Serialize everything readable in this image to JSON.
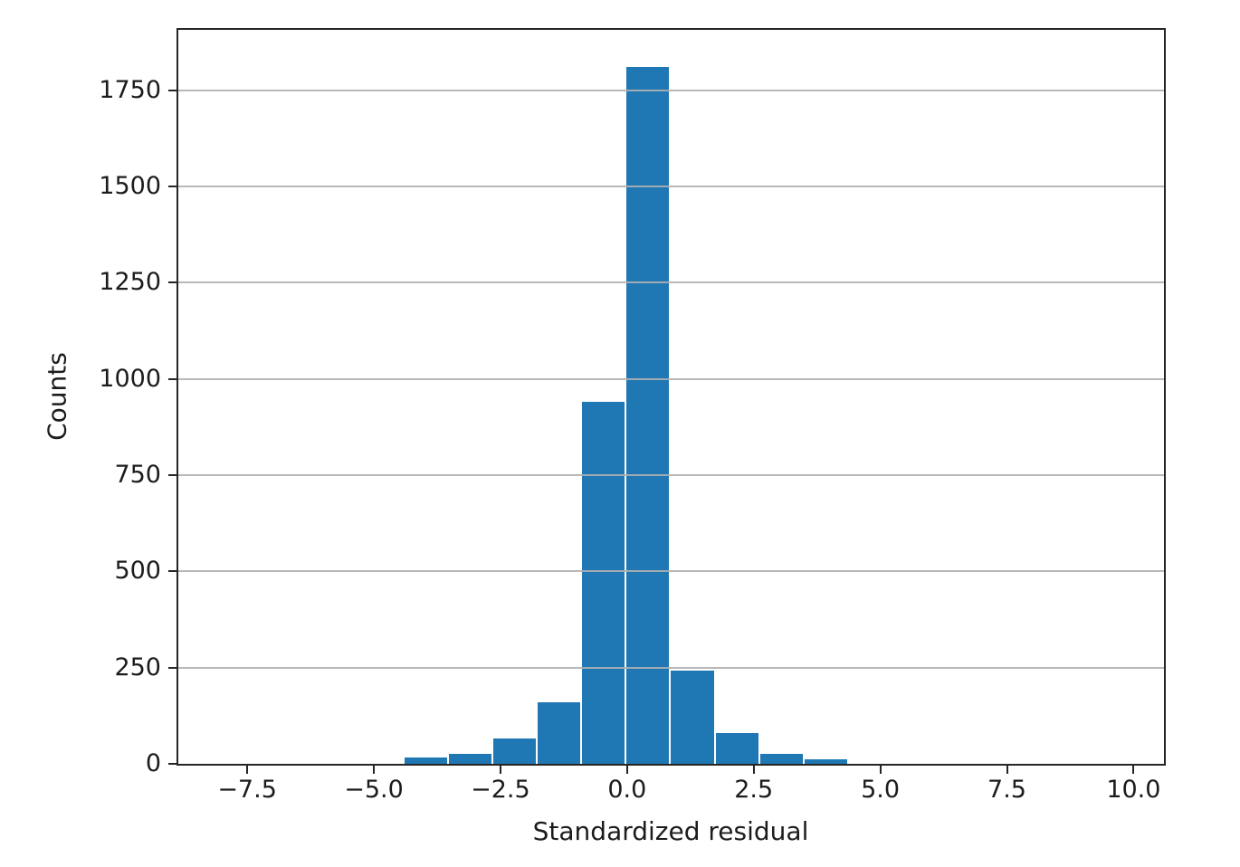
{
  "chart_data": {
    "type": "bar",
    "subtype": "histogram",
    "title": "",
    "xlabel": "Standardized residual",
    "ylabel": "Counts",
    "bin_edges": [
      -4.42,
      -3.54,
      -2.66,
      -1.78,
      -0.9,
      -0.03,
      0.85,
      1.73,
      2.61,
      3.49,
      4.37
    ],
    "counts": [
      16,
      26,
      65,
      160,
      940,
      1810,
      242,
      80,
      26,
      12
    ],
    "xlim": [
      -8.86,
      10.6
    ],
    "ylim": [
      0,
      1907
    ],
    "x_ticks": [
      {
        "value": -7.5,
        "label": "−7.5"
      },
      {
        "value": -5.0,
        "label": "−5.0"
      },
      {
        "value": -2.5,
        "label": "−2.5"
      },
      {
        "value": 0.0,
        "label": "0.0"
      },
      {
        "value": 2.5,
        "label": "2.5"
      },
      {
        "value": 5.0,
        "label": "5.0"
      },
      {
        "value": 7.5,
        "label": "7.5"
      },
      {
        "value": 10.0,
        "label": "10.0"
      }
    ],
    "y_ticks": [
      {
        "value": 0,
        "label": "0"
      },
      {
        "value": 250,
        "label": "250"
      },
      {
        "value": 500,
        "label": "500"
      },
      {
        "value": 750,
        "label": "750"
      },
      {
        "value": 1000,
        "label": "1000"
      },
      {
        "value": 1250,
        "label": "1250"
      },
      {
        "value": 1500,
        "label": "1500"
      },
      {
        "value": 1750,
        "label": "1750"
      }
    ],
    "grid": "horizontal, drawn above bars",
    "legend": null,
    "colors": {
      "bar": "#1f77b4",
      "bar_edge": "#ffffff",
      "grid": "#b0b0b0",
      "spine": "#262626",
      "text": "#1c1c1c",
      "background": "#ffffff"
    }
  }
}
